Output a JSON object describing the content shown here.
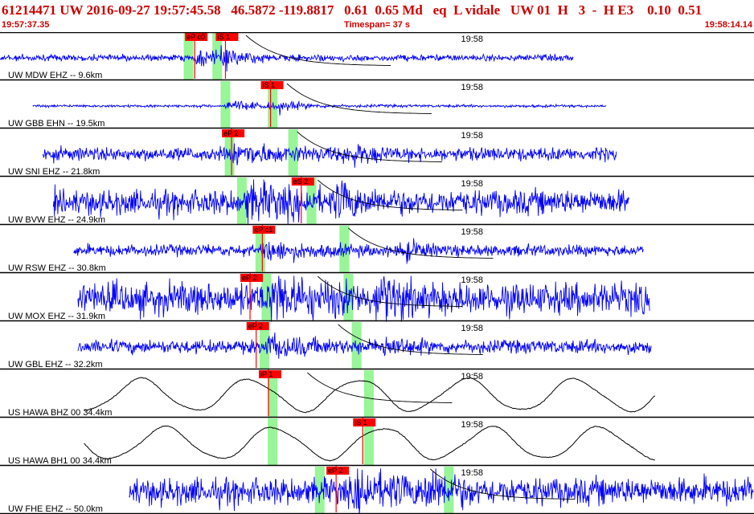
{
  "header": {
    "title": "61214471 UW 2016-09-27 19:57:45.58   46.5872 -119.8817   0.61  0.65 Md   eq  L vidale   UW 01  H   3  -  H E3    0.10  0.51",
    "start_time": "19:57:37.35",
    "timespan": "Timespan=  37 s",
    "end_time": "19:58:14.14"
  },
  "colors": {
    "trace_high": "#0000ff",
    "trace_low": "#000000",
    "pick_box": "#ff0000",
    "window": "#98f598",
    "decay_curve": "#000000",
    "pick_line": "#ff0000"
  },
  "chart_data": {
    "type": "line",
    "x_range_seconds": [
      0,
      36.79
    ],
    "tick_label": "19:58",
    "tick_time_s": 22.65,
    "traces": [
      {
        "label": "UW MDW EHZ -- 9.6km",
        "color": "blue",
        "start_s": 0.0,
        "end_s": 28.0,
        "amp": 0.15,
        "noise": 0.14,
        "p_s": 9.5,
        "s_s": 11.0,
        "windows": [
          9.2,
          10.6
        ],
        "picks": [
          {
            "text": "eP c0",
            "t": 9.5
          },
          {
            "text": "iS 1",
            "t": 11.0
          }
        ],
        "decay_s": 12.0
      },
      {
        "label": "UW GBB EHN -- 19.5km",
        "color": "blue",
        "start_s": 1.6,
        "end_s": 29.6,
        "amp": 0.12,
        "noise": 0.06,
        "p_s": 11.0,
        "s_s": 13.7,
        "windows": [
          11.0,
          13.3
        ],
        "picks": [
          {
            "text": "iS 1",
            "t": 13.2
          }
        ],
        "decay_s": 14.0
      },
      {
        "label": "UW SNI EHZ -- 21.8km",
        "color": "blue",
        "start_s": 2.1,
        "end_s": 30.1,
        "amp": 0.2,
        "noise": 0.3,
        "p_s": 11.4,
        "s_s": 17.1,
        "windows": [
          11.2,
          14.3
        ],
        "picks": [
          {
            "text": "eP 2",
            "t": 11.3
          }
        ],
        "decay_s": 14.5
      },
      {
        "label": "UW BVW EHZ -- 24.9km",
        "color": "blue",
        "start_s": 2.6,
        "end_s": 30.7,
        "amp": 0.3,
        "noise": 0.55,
        "p_s": 12.0,
        "s_s": 16.7,
        "windows": [
          11.8,
          15.2
        ],
        "picks": [
          {
            "text": "eS 2",
            "t": 14.7
          }
        ],
        "decay_s": 15.5
      },
      {
        "label": "UW RSW EHZ -- 30.8km",
        "color": "blue",
        "start_s": 3.6,
        "end_s": 31.4,
        "amp": 0.2,
        "noise": 0.25,
        "p_s": 12.8,
        "s_s": 19.8,
        "windows": [
          12.7,
          16.8
        ],
        "picks": [
          {
            "text": "eP c1",
            "t": 12.8
          }
        ],
        "decay_s": 17.0
      },
      {
        "label": "UW MOX EHZ -- 31.9km",
        "color": "blue",
        "start_s": 3.8,
        "end_s": 31.7,
        "amp": 0.4,
        "noise": 0.7,
        "p_s": 13.2,
        "s_s": 18.7,
        "windows": [
          13.0,
          17.0
        ],
        "picks": [
          {
            "text": "eP 2",
            "t": 12.2
          }
        ],
        "decay_s": 15.5
      },
      {
        "label": "UW GBL EHZ -- 32.2km",
        "color": "blue",
        "start_s": 3.8,
        "end_s": 31.8,
        "amp": 0.2,
        "noise": 0.3,
        "p_s": 13.0,
        "s_s": 18.9,
        "windows": [
          12.9,
          17.4
        ],
        "picks": [
          {
            "text": "eP 2",
            "t": 12.5
          }
        ],
        "decay_s": 16.5
      },
      {
        "label": "US HAWA BHZ 00 34.4km",
        "color": "black",
        "start_s": 4.1,
        "end_s": 32.0,
        "amp": 0.0,
        "noise": 0.02,
        "p_s": 13.5,
        "s_s": 20.2,
        "windows": [
          13.3,
          18.0
        ],
        "picks": [
          {
            "text": "iP 1",
            "t": 13.1
          }
        ],
        "decay_s": 15.0
      },
      {
        "label": "US HAWA BH1 00 34.4km",
        "color": "black",
        "start_s": 4.1,
        "end_s": 32.0,
        "amp": 0.0,
        "noise": 0.02,
        "p_s": 13.5,
        "s_s": 18.4,
        "windows": [
          13.3,
          18.0
        ],
        "picks": [
          {
            "text": "iS 1",
            "t": 17.7
          }
        ],
        "decay_s": 0
      },
      {
        "label": "UW FHE EHZ -- 50.0km",
        "color": "blue",
        "start_s": 6.3,
        "end_s": 36.79,
        "amp": 0.35,
        "noise": 0.6,
        "p_s": 17.3,
        "s_s": 21.1,
        "windows": [
          15.6,
          21.9
        ],
        "picks": [
          {
            "text": "eP 2",
            "t": 16.4
          }
        ],
        "decay_s": 21.0
      }
    ]
  }
}
